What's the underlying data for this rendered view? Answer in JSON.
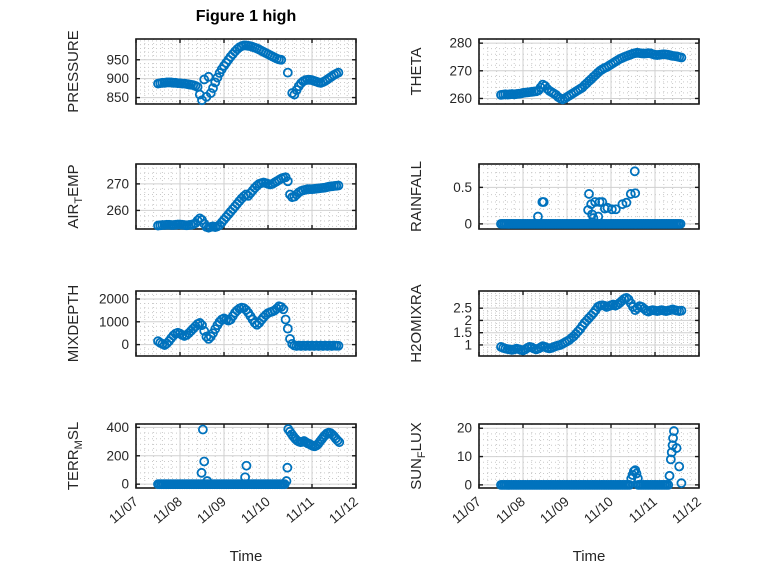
{
  "figure": {
    "title": "Figure 1 high",
    "xlabel": "Time"
  },
  "style": {
    "marker_color": "#0072BD",
    "axes_color": "#1a1a1a",
    "grid_major_color": "#d0d0d0",
    "grid_minor_color": "#c9c9c9",
    "text_color": "#262626",
    "background": "#ffffff"
  },
  "xaxis": {
    "label": "Time",
    "xlim": [
      0,
      5
    ],
    "ticks": [
      0,
      1,
      2,
      3,
      4,
      5
    ],
    "tick_labels": [
      "11/07",
      "11/08",
      "11/09",
      "11/10",
      "11/11",
      "11/12"
    ],
    "minor_step": 0.2
  },
  "chart_data": [
    {
      "type": "scatter",
      "name": "pressure",
      "grid": {
        "row": 0,
        "col": 0
      },
      "ylabel_parts": [
        [
          "PRESSURE",
          false
        ]
      ],
      "ylim": [
        833,
        1005
      ],
      "yticks": [
        850,
        900,
        950
      ],
      "ytick_labels": [
        "850",
        "900",
        "950"
      ],
      "y_minor": 10,
      "series": [
        {
          "x_start": 0.5,
          "x_step": 0.05,
          "values": [
            887,
            888,
            889,
            889,
            890,
            890,
            890,
            889,
            889,
            888,
            888,
            887,
            887,
            886,
            885,
            884,
            883,
            881,
            878,
            858,
            843,
            898,
            852,
            905,
            862,
            875,
            890,
            903,
            915,
            925,
            934,
            942,
            950,
            958,
            965,
            972,
            978,
            983,
            986,
            988,
            988,
            987,
            986,
            984,
            982,
            980,
            977,
            974,
            971,
            968,
            965,
            962,
            959,
            956,
            953,
            951,
            950,
            null,
            null,
            916,
            null,
            862,
            858,
            870,
            880,
            888,
            893,
            896,
            897,
            897,
            896,
            894,
            892,
            890,
            889,
            891,
            894,
            898,
            902,
            906,
            910,
            913,
            916
          ]
        }
      ],
      "points": []
    },
    {
      "type": "scatter",
      "name": "theta",
      "grid": {
        "row": 0,
        "col": 1
      },
      "ylabel_parts": [
        [
          "THETA",
          false
        ]
      ],
      "ylim": [
        258,
        281.5
      ],
      "yticks": [
        260,
        270,
        280
      ],
      "ytick_labels": [
        "260",
        "270",
        "280"
      ],
      "y_minor": 2,
      "series": [
        {
          "x_start": 0.5,
          "x_step": 0.05,
          "values": [
            261.3,
            261.4,
            261.5,
            261.4,
            261.5,
            261.6,
            261.5,
            261.6,
            261.7,
            261.8,
            262.0,
            262.1,
            262.2,
            262.3,
            262.4,
            262.5,
            262.6,
            262.9,
            264.0,
            265.0,
            264.5,
            263.5,
            262.8,
            262.3,
            261.8,
            261.3,
            260.5,
            260.0,
            259.7,
            260.0,
            260.5,
            261.0,
            261.5,
            262.0,
            262.5,
            263.0,
            263.5,
            264.0,
            264.8,
            265.5,
            266.3,
            267.0,
            267.8,
            268.5,
            269.3,
            270.0,
            270.5,
            271.0,
            271.3,
            271.8,
            272.3,
            272.8,
            273.3,
            273.8,
            274.3,
            274.6,
            275.0,
            275.3,
            275.6,
            275.9,
            276.2,
            276.4,
            276.5,
            276.4,
            276.3,
            276.2,
            276.3,
            276.4,
            276.3,
            276.0,
            275.8,
            275.7,
            275.8,
            275.9,
            276.0,
            275.9,
            275.8,
            275.6,
            275.4,
            275.3,
            275.2,
            275.0,
            274.8
          ]
        }
      ],
      "points": []
    },
    {
      "type": "scatter",
      "name": "air-temp",
      "grid": {
        "row": 1,
        "col": 0
      },
      "ylabel_parts": [
        [
          "AIR",
          false
        ],
        [
          "T",
          true
        ],
        [
          "EMP",
          false
        ]
      ],
      "ylim": [
        253,
        277.5
      ],
      "yticks": [
        260,
        270
      ],
      "ytick_labels": [
        "260",
        "270"
      ],
      "y_minor": 2,
      "series": [
        {
          "x_start": 0.5,
          "x_step": 0.05,
          "values": [
            254.3,
            254.4,
            254.5,
            254.5,
            254.6,
            254.6,
            254.5,
            254.5,
            254.6,
            254.7,
            254.7,
            254.6,
            254.5,
            254.4,
            254.5,
            254.6,
            254.8,
            255.2,
            256.2,
            257.0,
            256.4,
            255.0,
            253.8,
            253.5,
            253.8,
            254.0,
            253.7,
            254.0,
            254.5,
            255.5,
            256.5,
            257.5,
            258.5,
            259.5,
            260.5,
            261.5,
            262.5,
            263.5,
            264.5,
            265.3,
            266.0,
            265.5,
            266.5,
            267.5,
            268.5,
            269.3,
            270.0,
            270.3,
            270.5,
            270.3,
            270.0,
            269.8,
            270.0,
            270.5,
            271.0,
            271.5,
            272.0,
            272.3,
            272.5,
            271.0,
            266.0,
            265.0,
            265.2,
            266.0,
            266.8,
            267.3,
            267.6,
            267.8,
            268.0,
            268.0,
            268.0,
            268.1,
            268.2,
            268.3,
            268.4,
            268.5,
            268.6,
            268.8,
            269.0,
            269.1,
            269.2,
            269.3,
            269.4
          ]
        }
      ],
      "points": []
    },
    {
      "type": "scatter",
      "name": "rainfall",
      "grid": {
        "row": 1,
        "col": 1
      },
      "ylabel_parts": [
        [
          "RAINFALL",
          false
        ]
      ],
      "ylim": [
        -0.07,
        0.82
      ],
      "yticks": [
        0,
        0.5
      ],
      "ytick_labels": [
        "0",
        "0.5"
      ],
      "y_minor": 0.1,
      "series": [
        {
          "x_start": 0.5,
          "x_step": 0.04,
          "values": [
            0,
            0,
            0,
            0,
            0,
            0,
            0,
            0,
            0,
            0,
            0,
            0,
            0,
            0,
            0,
            0,
            0,
            0,
            0,
            0,
            0,
            0,
            0,
            0,
            0,
            0,
            0,
            0,
            0,
            0,
            0,
            0,
            0,
            0,
            0,
            0,
            0,
            0,
            0,
            0,
            0,
            0,
            0,
            0,
            0,
            0,
            0,
            0,
            0,
            0,
            0,
            0,
            0,
            0,
            0,
            0,
            0,
            0,
            0,
            0,
            0,
            0,
            0,
            0,
            0,
            0,
            0,
            0,
            0,
            0,
            0,
            0,
            0,
            0,
            0,
            0,
            0,
            0,
            0,
            0,
            0,
            0,
            0,
            0,
            0,
            0,
            0,
            0,
            0,
            0,
            0,
            0,
            0,
            0,
            0,
            0,
            0,
            0,
            0,
            0,
            0,
            0,
            0
          ]
        }
      ],
      "points": [
        [
          1.34,
          0.1
        ],
        [
          1.44,
          0.3
        ],
        [
          1.47,
          0.3
        ],
        [
          2.48,
          0.19
        ],
        [
          2.5,
          0.41
        ],
        [
          2.55,
          0.27
        ],
        [
          2.57,
          0.13
        ],
        [
          2.6,
          0.08
        ],
        [
          2.64,
          0.3
        ],
        [
          2.71,
          0.1
        ],
        [
          2.74,
          0.3
        ],
        [
          2.8,
          0.3
        ],
        [
          2.86,
          0.21
        ],
        [
          2.92,
          0.22
        ],
        [
          3.02,
          0.2
        ],
        [
          3.11,
          0.2
        ],
        [
          3.26,
          0.27
        ],
        [
          3.35,
          0.29
        ],
        [
          3.45,
          0.41
        ],
        [
          3.54,
          0.72
        ],
        [
          3.55,
          0.42
        ]
      ]
    },
    {
      "type": "scatter",
      "name": "mixdepth",
      "grid": {
        "row": 2,
        "col": 0
      },
      "ylabel_parts": [
        [
          "MIXDEPTH",
          false
        ]
      ],
      "ylim": [
        -500,
        2350
      ],
      "yticks": [
        0,
        1000,
        2000
      ],
      "ytick_labels": [
        "0",
        "1000",
        "2000"
      ],
      "y_minor": 200,
      "series": [
        {
          "x_start": 0.5,
          "x_step": 0.05,
          "values": [
            150,
            80,
            30,
            -20,
            50,
            150,
            280,
            400,
            480,
            520,
            480,
            420,
            380,
            420,
            500,
            600,
            700,
            800,
            900,
            950,
            850,
            600,
            350,
            250,
            350,
            500,
            680,
            850,
            1000,
            1100,
            1150,
            1100,
            1050,
            1100,
            1250,
            1400,
            1500,
            1580,
            1620,
            1600,
            1520,
            1400,
            1250,
            1100,
            950,
            870,
            950,
            1080,
            1200,
            1300,
            1380,
            1420,
            1450,
            1500,
            1580,
            1680,
            1650,
            1550,
            1100,
            700,
            250,
            30,
            -40,
            -60,
            -40,
            -60,
            -40,
            -60,
            -40,
            -60,
            -40,
            -60,
            -40,
            -60,
            -40,
            -60,
            -40,
            -60,
            -40,
            -60,
            -40,
            -50,
            -50
          ]
        }
      ],
      "points": []
    },
    {
      "type": "scatter",
      "name": "h2omixra",
      "grid": {
        "row": 2,
        "col": 1
      },
      "ylabel_parts": [
        [
          "H2OMIXRA",
          false
        ]
      ],
      "ylim": [
        0.55,
        3.2
      ],
      "yticks": [
        1,
        1.5,
        2,
        2.5
      ],
      "ytick_labels": [
        "1",
        "1.5",
        "2",
        "2.5"
      ],
      "y_minor": 0.1,
      "series": [
        {
          "x_start": 0.5,
          "x_step": 0.05,
          "values": [
            0.92,
            0.88,
            0.85,
            0.83,
            0.82,
            0.8,
            0.82,
            0.85,
            0.83,
            0.8,
            0.78,
            0.82,
            0.88,
            0.92,
            0.9,
            0.85,
            0.82,
            0.85,
            0.9,
            0.95,
            0.92,
            0.88,
            0.86,
            0.88,
            0.92,
            0.95,
            0.98,
            1.0,
            1.05,
            1.1,
            1.15,
            1.2,
            1.28,
            1.35,
            1.45,
            1.55,
            1.65,
            1.78,
            1.9,
            2.0,
            2.1,
            2.2,
            2.3,
            2.42,
            2.55,
            2.6,
            2.62,
            2.6,
            2.55,
            2.58,
            2.62,
            2.65,
            2.6,
            2.65,
            2.72,
            2.8,
            2.88,
            2.92,
            2.85,
            2.7,
            2.55,
            2.42,
            2.5,
            2.58,
            2.55,
            2.48,
            2.4,
            2.36,
            2.4,
            2.42,
            2.4,
            2.38,
            2.4,
            2.42,
            2.4,
            2.38,
            2.4,
            2.42,
            2.45,
            2.42,
            2.4,
            2.38,
            2.4
          ]
        }
      ],
      "points": []
    },
    {
      "type": "scatter",
      "name": "terr-msl",
      "grid": {
        "row": 3,
        "col": 0
      },
      "ylabel_parts": [
        [
          "TERR",
          false
        ],
        [
          "M",
          true
        ],
        [
          "SL",
          false
        ]
      ],
      "ylim": [
        -27,
        424
      ],
      "yticks": [
        0,
        200,
        400
      ],
      "ytick_labels": [
        "0",
        "200",
        "400"
      ],
      "y_minor": 40,
      "series": [
        {
          "x_start": 0.5,
          "x_step": 0.04,
          "values": [
            0,
            0,
            0,
            0,
            0,
            0,
            0,
            0,
            0,
            0,
            0,
            0,
            0,
            0,
            0,
            0,
            0,
            0,
            0,
            0,
            0,
            0,
            0,
            0,
            0,
            0,
            0,
            0,
            0,
            0,
            0,
            0,
            0,
            0,
            0,
            0,
            0,
            0,
            0,
            0,
            0,
            0,
            0,
            0,
            0,
            0,
            0,
            0,
            0,
            0,
            0,
            0,
            0,
            0,
            0,
            0,
            0,
            0,
            0,
            0,
            0,
            0,
            0,
            0,
            0,
            0,
            0,
            0,
            0,
            0,
            0,
            0,
            0
          ]
        },
        {
          "x_start": 3.46,
          "x_step": 0.04,
          "values": [
            388,
            370,
            352,
            335,
            320,
            308,
            300,
            296,
            298,
            304,
            296,
            288,
            284,
            276,
            270,
            267,
            272,
            284,
            300,
            316,
            332,
            346,
            358,
            363,
            360,
            350,
            338,
            322,
            308,
            296
          ]
        }
      ],
      "points": [
        [
          1.49,
          80
        ],
        [
          1.52,
          385
        ],
        [
          1.55,
          160
        ],
        [
          1.62,
          22
        ],
        [
          2.48,
          49
        ],
        [
          2.51,
          130
        ],
        [
          3.42,
          22
        ],
        [
          3.44,
          116
        ]
      ]
    },
    {
      "type": "scatter",
      "name": "sun-flux",
      "grid": {
        "row": 3,
        "col": 1
      },
      "ylabel_parts": [
        [
          "SUN",
          false
        ],
        [
          "F",
          true
        ],
        [
          "LUX",
          false
        ]
      ],
      "ylim": [
        -1.1,
        21.5
      ],
      "yticks": [
        0,
        10,
        20
      ],
      "ytick_labels": [
        "0",
        "10",
        "20"
      ],
      "y_minor": 2,
      "series": [
        {
          "x_start": 0.5,
          "x_step": 0.04,
          "values": [
            0,
            0,
            0,
            0,
            0,
            0,
            0,
            0,
            0,
            0,
            0,
            0,
            0,
            0,
            0,
            0,
            0,
            0,
            0,
            0,
            0,
            0,
            0,
            0,
            0,
            0,
            0,
            0,
            0,
            0,
            0,
            0,
            0,
            0,
            0,
            0,
            0,
            0,
            0,
            0,
            0,
            0,
            0,
            0,
            0,
            0,
            0,
            0,
            0,
            0,
            0,
            0,
            0,
            0,
            0,
            0,
            0,
            0,
            0,
            0,
            0,
            0,
            0,
            0,
            0,
            0,
            0,
            0,
            0,
            0,
            0,
            0,
            0,
            0
          ]
        },
        {
          "x_start": 3.62,
          "x_step": 0.04,
          "values": [
            0,
            0,
            0,
            0,
            0,
            0,
            0,
            0,
            0,
            0,
            0,
            0,
            0,
            0,
            0,
            0,
            0,
            0
          ]
        }
      ],
      "points": [
        [
          3.46,
          2.2
        ],
        [
          3.49,
          3.5
        ],
        [
          3.52,
          4.8
        ],
        [
          3.55,
          5.2
        ],
        [
          3.58,
          4.0
        ],
        [
          3.61,
          2.3
        ],
        [
          4.33,
          3.2
        ],
        [
          4.36,
          9.0
        ],
        [
          4.38,
          11.5
        ],
        [
          4.4,
          14.0
        ],
        [
          4.41,
          16.5
        ],
        [
          4.43,
          19.0
        ],
        [
          4.49,
          13.0
        ],
        [
          4.55,
          6.5
        ],
        [
          4.6,
          0.6
        ]
      ]
    }
  ]
}
